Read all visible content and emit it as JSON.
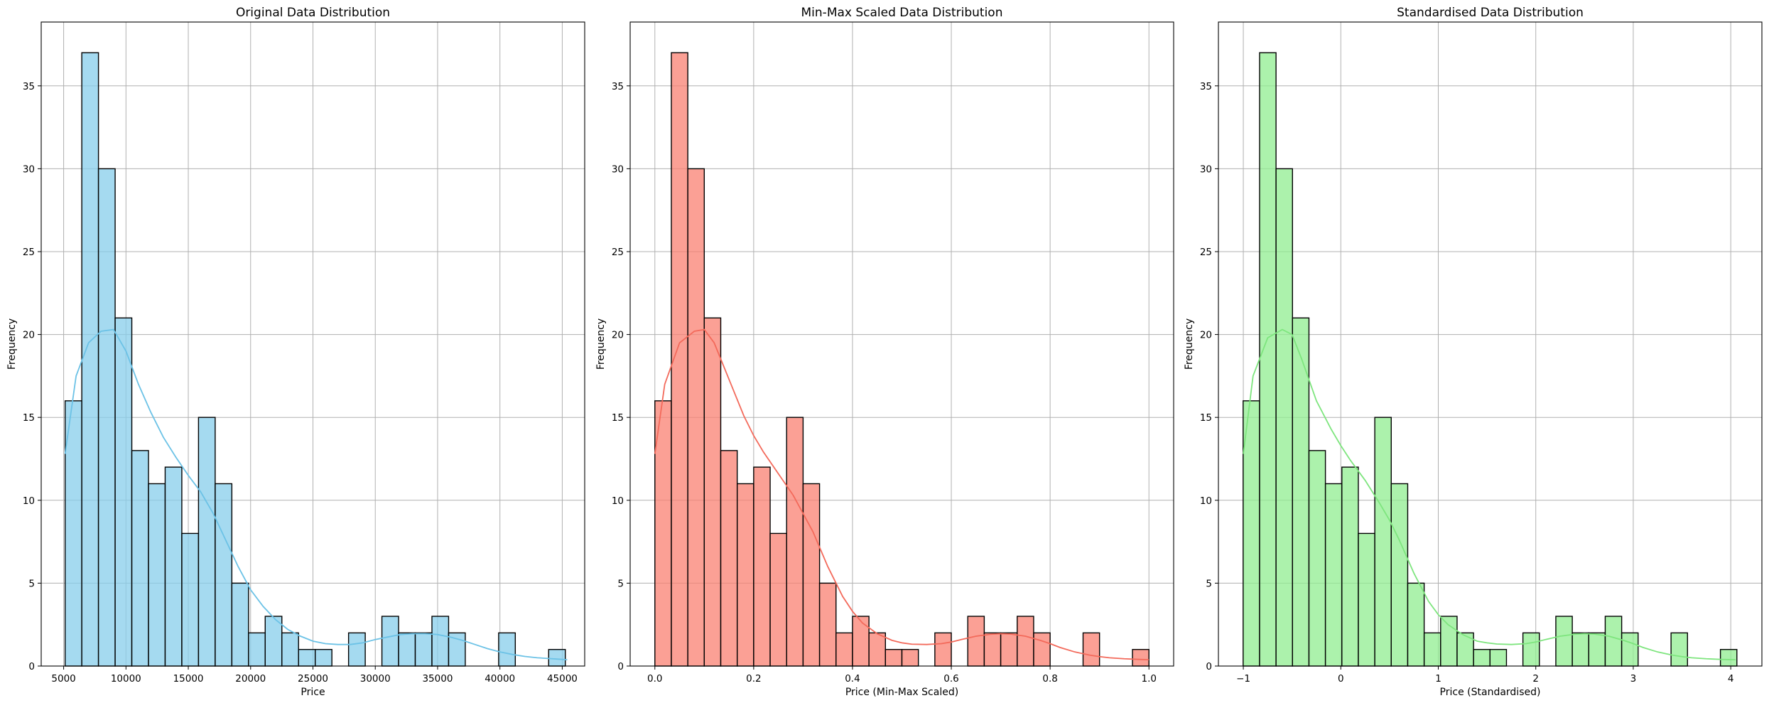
{
  "chart_data": [
    {
      "type": "bar",
      "title": "Original Data Distribution",
      "xlabel": "Price",
      "ylabel": "Frequency",
      "xlim": [
        3200,
        46800
      ],
      "ylim": [
        0,
        38.85
      ],
      "xticks": [
        5000,
        10000,
        15000,
        20000,
        25000,
        30000,
        35000,
        40000,
        45000
      ],
      "xtick_labels": [
        "5000",
        "10000",
        "15000",
        "20000",
        "25000",
        "30000",
        "35000",
        "40000",
        "45000"
      ],
      "yticks": [
        0,
        5,
        10,
        15,
        20,
        25,
        30,
        35
      ],
      "ytick_labels": [
        "0",
        "5",
        "10",
        "15",
        "20",
        "25",
        "30",
        "35"
      ],
      "bin_start": 5118,
      "bin_width": 1337.6,
      "counts": [
        16,
        37,
        30,
        21,
        13,
        11,
        12,
        8,
        15,
        11,
        5,
        2,
        3,
        2,
        1,
        1,
        0,
        2,
        0,
        3,
        2,
        2,
        3,
        2,
        0,
        0,
        2,
        0,
        0,
        1
      ],
      "kde": [
        [
          5118,
          12.8
        ],
        [
          6000,
          17.5
        ],
        [
          7000,
          19.5
        ],
        [
          8000,
          20.2
        ],
        [
          9000,
          20.3
        ],
        [
          10000,
          19.0
        ],
        [
          11000,
          17.0
        ],
        [
          12000,
          15.3
        ],
        [
          13000,
          13.8
        ],
        [
          14000,
          12.6
        ],
        [
          15000,
          11.5
        ],
        [
          16000,
          10.5
        ],
        [
          17000,
          9.2
        ],
        [
          18000,
          7.6
        ],
        [
          19000,
          6.0
        ],
        [
          20000,
          4.6
        ],
        [
          21000,
          3.6
        ],
        [
          22000,
          2.8
        ],
        [
          23000,
          2.2
        ],
        [
          24000,
          1.8
        ],
        [
          25000,
          1.5
        ],
        [
          26000,
          1.35
        ],
        [
          27000,
          1.3
        ],
        [
          28000,
          1.3
        ],
        [
          29000,
          1.4
        ],
        [
          30000,
          1.6
        ],
        [
          31000,
          1.75
        ],
        [
          32000,
          1.9
        ],
        [
          33000,
          1.95
        ],
        [
          34000,
          1.95
        ],
        [
          35000,
          1.9
        ],
        [
          36000,
          1.75
        ],
        [
          37000,
          1.55
        ],
        [
          38000,
          1.3
        ],
        [
          39000,
          1.05
        ],
        [
          40000,
          0.85
        ],
        [
          41000,
          0.7
        ],
        [
          42000,
          0.58
        ],
        [
          43000,
          0.5
        ],
        [
          44000,
          0.45
        ],
        [
          45000,
          0.4
        ],
        [
          45400,
          0.38
        ]
      ],
      "bar_color": "#87ceeb",
      "line_color": "#6cc2e6"
    },
    {
      "type": "bar",
      "title": "Min-Max Scaled Data Distribution",
      "xlabel": "Price (Min-Max Scaled)",
      "ylabel": "Frequency",
      "xlim": [
        -0.05,
        1.05
      ],
      "ylim": [
        0,
        38.85
      ],
      "xticks": [
        0,
        0.2,
        0.4,
        0.6,
        0.8,
        1.0
      ],
      "xtick_labels": [
        "0.0",
        "0.2",
        "0.4",
        "0.6",
        "0.8",
        "1.0"
      ],
      "yticks": [
        0,
        5,
        10,
        15,
        20,
        25,
        30,
        35
      ],
      "ytick_labels": [
        "0",
        "5",
        "10",
        "15",
        "20",
        "25",
        "30",
        "35"
      ],
      "bin_start": 0,
      "bin_width": 0.033333,
      "counts": [
        16,
        37,
        30,
        21,
        13,
        11,
        12,
        8,
        15,
        11,
        5,
        2,
        3,
        2,
        1,
        1,
        0,
        2,
        0,
        3,
        2,
        2,
        3,
        2,
        0,
        0,
        2,
        0,
        0,
        1
      ],
      "kde": [
        [
          0.0,
          12.8
        ],
        [
          0.02,
          17.0
        ],
        [
          0.05,
          19.5
        ],
        [
          0.08,
          20.2
        ],
        [
          0.1,
          20.3
        ],
        [
          0.12,
          19.5
        ],
        [
          0.15,
          17.3
        ],
        [
          0.18,
          15.1
        ],
        [
          0.2,
          13.9
        ],
        [
          0.22,
          12.9
        ],
        [
          0.25,
          11.6
        ],
        [
          0.28,
          10.3
        ],
        [
          0.3,
          9.2
        ],
        [
          0.32,
          8.1
        ],
        [
          0.35,
          6.0
        ],
        [
          0.38,
          4.2
        ],
        [
          0.4,
          3.3
        ],
        [
          0.42,
          2.6
        ],
        [
          0.45,
          1.95
        ],
        [
          0.48,
          1.55
        ],
        [
          0.5,
          1.4
        ],
        [
          0.52,
          1.32
        ],
        [
          0.55,
          1.3
        ],
        [
          0.58,
          1.35
        ],
        [
          0.6,
          1.45
        ],
        [
          0.62,
          1.6
        ],
        [
          0.65,
          1.8
        ],
        [
          0.68,
          1.92
        ],
        [
          0.7,
          1.95
        ],
        [
          0.72,
          1.93
        ],
        [
          0.75,
          1.8
        ],
        [
          0.78,
          1.55
        ],
        [
          0.8,
          1.35
        ],
        [
          0.82,
          1.12
        ],
        [
          0.85,
          0.85
        ],
        [
          0.88,
          0.66
        ],
        [
          0.9,
          0.57
        ],
        [
          0.92,
          0.5
        ],
        [
          0.95,
          0.44
        ],
        [
          0.98,
          0.4
        ],
        [
          1.0,
          0.38
        ]
      ],
      "bar_color": "#fa8072",
      "line_color": "#f36a5b"
    },
    {
      "type": "bar",
      "title": "Standardised Data Distribution",
      "xlabel": "Price (Standardised)",
      "ylabel": "Frequency",
      "xlim": [
        -1.2555,
        4.3195
      ],
      "ylim": [
        0,
        38.85
      ],
      "xticks": [
        -1,
        0,
        1,
        2,
        3,
        4
      ],
      "xtick_labels": [
        "−1",
        "0",
        "1",
        "2",
        "3",
        "4"
      ],
      "yticks": [
        0,
        5,
        10,
        15,
        20,
        25,
        30,
        35
      ],
      "ytick_labels": [
        "0",
        "5",
        "10",
        "15",
        "20",
        "25",
        "30",
        "35"
      ],
      "bin_start": -1.002,
      "bin_width": 0.16883,
      "counts": [
        16,
        37,
        30,
        21,
        13,
        11,
        12,
        8,
        15,
        11,
        5,
        2,
        3,
        2,
        1,
        1,
        0,
        2,
        0,
        3,
        2,
        2,
        3,
        2,
        0,
        0,
        2,
        0,
        0,
        1
      ],
      "kde": [
        [
          -1.0,
          12.8
        ],
        [
          -0.9,
          17.5
        ],
        [
          -0.75,
          19.8
        ],
        [
          -0.6,
          20.3
        ],
        [
          -0.5,
          20.0
        ],
        [
          -0.4,
          18.5
        ],
        [
          -0.25,
          16.0
        ],
        [
          -0.1,
          14.3
        ],
        [
          0.0,
          13.3
        ],
        [
          0.1,
          12.4
        ],
        [
          0.25,
          11.2
        ],
        [
          0.4,
          9.8
        ],
        [
          0.5,
          8.8
        ],
        [
          0.6,
          7.6
        ],
        [
          0.75,
          5.6
        ],
        [
          0.9,
          3.9
        ],
        [
          1.0,
          3.1
        ],
        [
          1.1,
          2.5
        ],
        [
          1.25,
          1.9
        ],
        [
          1.4,
          1.5
        ],
        [
          1.5,
          1.4
        ],
        [
          1.6,
          1.33
        ],
        [
          1.75,
          1.3
        ],
        [
          1.9,
          1.35
        ],
        [
          2.0,
          1.45
        ],
        [
          2.1,
          1.6
        ],
        [
          2.25,
          1.8
        ],
        [
          2.4,
          1.92
        ],
        [
          2.5,
          1.95
        ],
        [
          2.6,
          1.93
        ],
        [
          2.75,
          1.8
        ],
        [
          2.9,
          1.55
        ],
        [
          3.0,
          1.35
        ],
        [
          3.1,
          1.12
        ],
        [
          3.25,
          0.85
        ],
        [
          3.4,
          0.66
        ],
        [
          3.5,
          0.57
        ],
        [
          3.6,
          0.5
        ],
        [
          3.75,
          0.44
        ],
        [
          3.9,
          0.4
        ],
        [
          4.05,
          0.38
        ]
      ],
      "bar_color": "#90ee90",
      "line_color": "#7ee57e"
    }
  ]
}
